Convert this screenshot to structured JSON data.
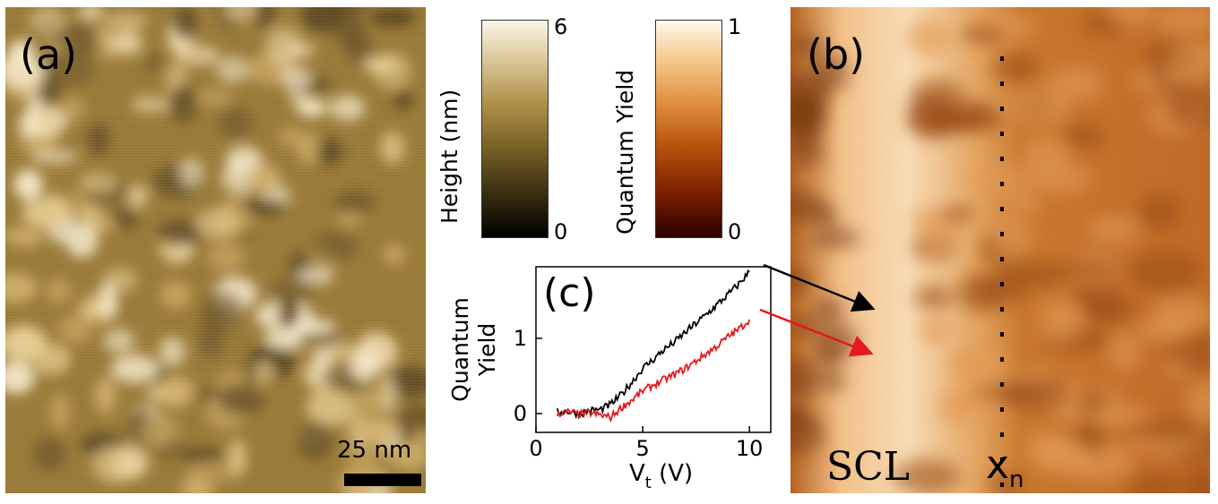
{
  "panel_a": {
    "tag": "(a)",
    "scale_label": "25 nm"
  },
  "panel_b": {
    "tag": "(b)",
    "scl_label": "SCL",
    "xn_label": "x",
    "xn_sub": "n"
  },
  "colorbar_height": {
    "title": "Height (nm)",
    "max": "6",
    "min": "0"
  },
  "colorbar_qy": {
    "title": "Quantum Yield",
    "max": "1",
    "min": "0"
  },
  "colors": {
    "height_map_base": "#b08d48",
    "qy_map_base": "#c56f2a",
    "series_black": "#000000",
    "series_red": "#e41a1c"
  },
  "chart_data": {
    "type": "line",
    "tag": "(c)",
    "xlabel": "V",
    "xlabel_sub": "t",
    "xlabel_unit": "(V)",
    "ylabel": [
      "Quantum",
      "Yield"
    ],
    "xlim": [
      0,
      11
    ],
    "ylim": [
      -0.25,
      1.95
    ],
    "xticks": [
      0,
      5,
      10
    ],
    "yticks": [
      0,
      1
    ],
    "grid": false,
    "series": [
      {
        "color": "#000000",
        "x": [
          1,
          1.5,
          2,
          2.5,
          3,
          3.5,
          4,
          4.5,
          5,
          5.5,
          6,
          6.5,
          7,
          7.5,
          8,
          8.5,
          9,
          9.5,
          10
        ],
        "y": [
          0.02,
          0.03,
          0.0,
          0.04,
          0.05,
          0.12,
          0.25,
          0.42,
          0.6,
          0.72,
          0.85,
          0.95,
          1.08,
          1.2,
          1.32,
          1.45,
          1.58,
          1.72,
          1.88
        ]
      },
      {
        "color": "#e41a1c",
        "x": [
          1,
          1.5,
          2,
          2.5,
          3,
          3.5,
          4,
          4.5,
          5,
          5.5,
          6,
          6.5,
          7,
          7.5,
          8,
          8.5,
          9,
          9.5,
          10
        ],
        "y": [
          0.0,
          0.02,
          -0.01,
          0.01,
          -0.02,
          -0.05,
          0.08,
          0.18,
          0.3,
          0.38,
          0.45,
          0.52,
          0.6,
          0.7,
          0.8,
          0.9,
          1.02,
          1.12,
          1.25
        ]
      }
    ]
  }
}
